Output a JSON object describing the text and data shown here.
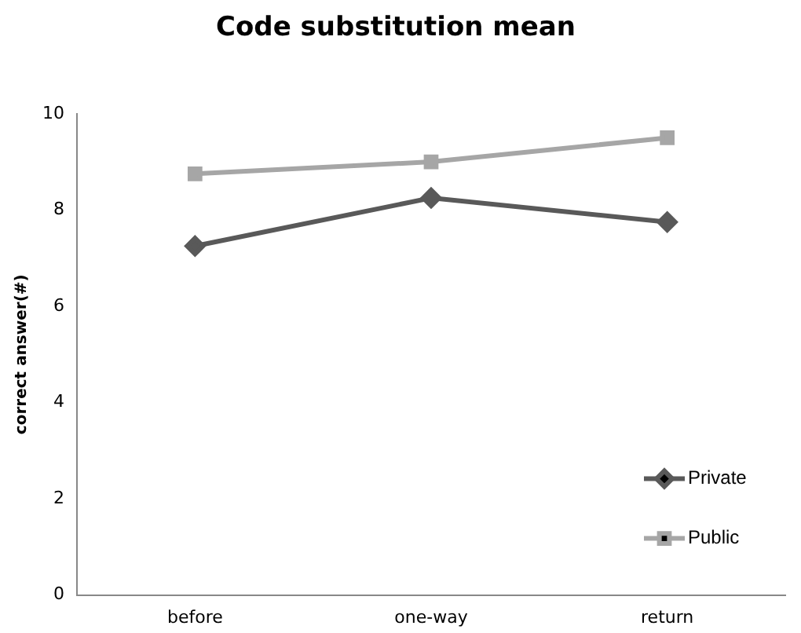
{
  "chart_data": {
    "type": "line",
    "title": "Code substitution mean",
    "ylabel": "correct answer(#)",
    "categories": [
      "before",
      "one-way",
      "return"
    ],
    "series": [
      {
        "name": "Private",
        "color": "#595959",
        "marker": "diamond",
        "values": [
          7.25,
          8.25,
          7.75
        ]
      },
      {
        "name": "Public",
        "color": "#a6a6a6",
        "marker": "square",
        "values": [
          8.75,
          9.0,
          9.5
        ]
      }
    ],
    "ylim": [
      0,
      10
    ],
    "yticks": [
      0,
      2,
      4,
      6,
      8,
      10
    ],
    "grid": false,
    "legend": "bottom right"
  }
}
